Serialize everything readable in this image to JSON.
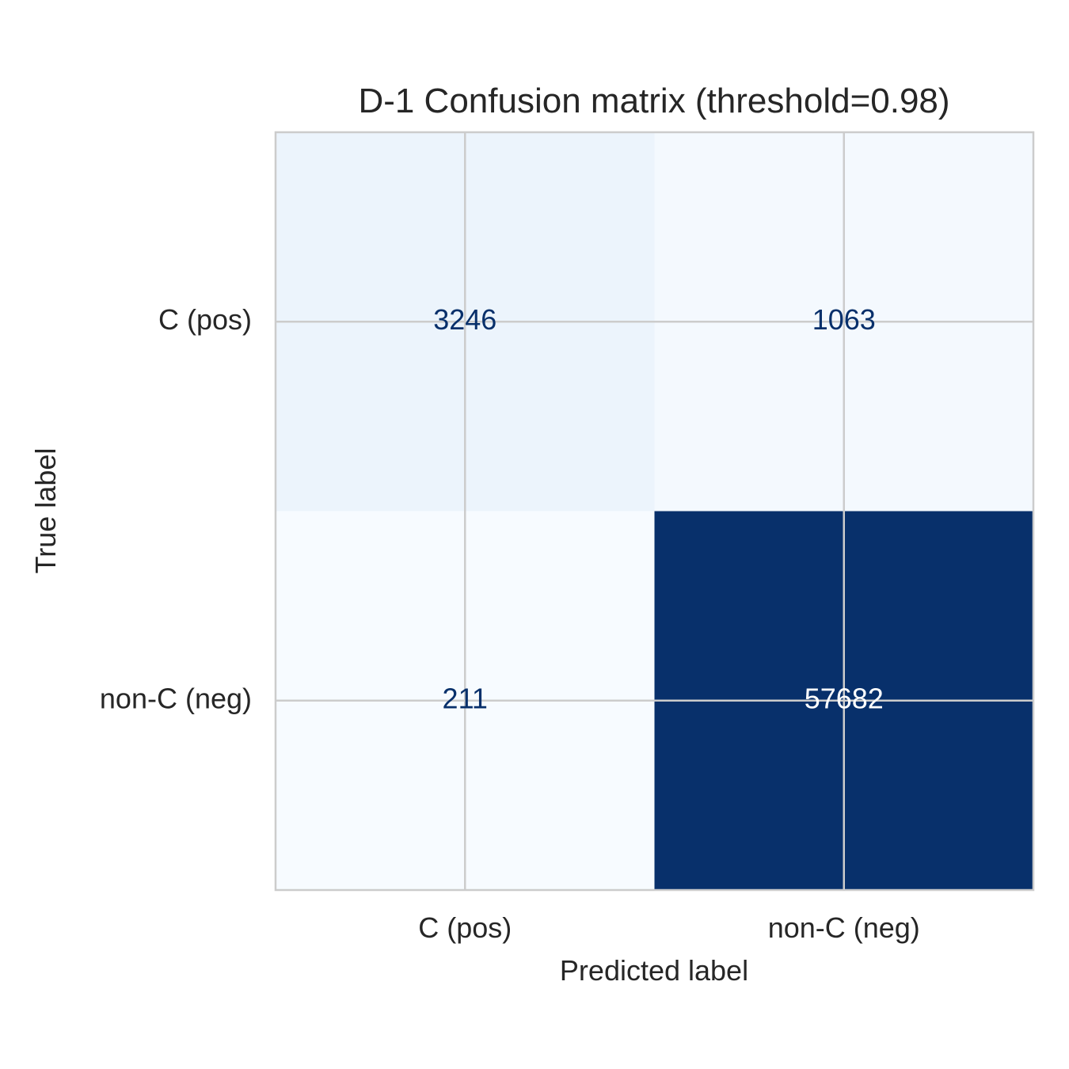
{
  "chart_data": {
    "type": "heatmap",
    "title": "D-1  Confusion matrix  (threshold=0.98)",
    "xlabel": "Predicted label",
    "ylabel": "True label",
    "x_categories": [
      "C (pos)",
      "non-C (neg)"
    ],
    "y_categories": [
      "C (pos)",
      "non-C (neg)"
    ],
    "values": [
      [
        3246,
        1063
      ],
      [
        211,
        57682
      ]
    ],
    "colormap": "Blues",
    "colormap_low": "#f7fbff",
    "colormap_high": "#08306b",
    "text_color_light_cell": "#08306b",
    "text_color_dark_cell": "#ffffff",
    "grid": true,
    "grid_color": "#cccccc",
    "colorbar": false
  }
}
